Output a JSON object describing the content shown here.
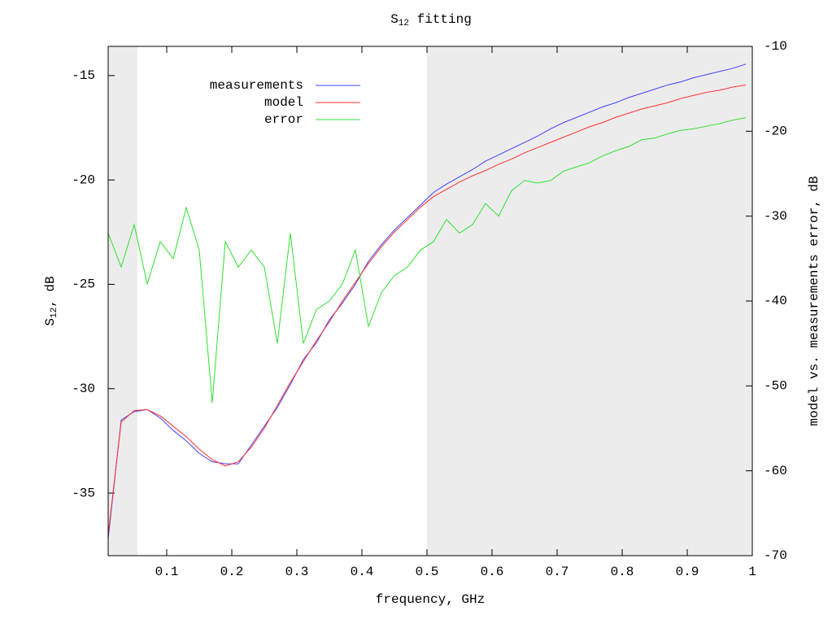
{
  "chart_data": {
    "type": "line",
    "title_parts": [
      "S",
      "12",
      " fitting"
    ],
    "x_label": "frequency, GHz",
    "y_label_parts": [
      "S",
      "12",
      ", dB"
    ],
    "y2_label": "model vs. measurements error, dB",
    "xlim": [
      0.01,
      1
    ],
    "xticks": [
      0.1,
      0.2,
      0.3,
      0.4,
      0.5,
      0.6,
      0.7,
      0.8,
      0.9,
      1
    ],
    "ylim": [
      -38,
      -13.6
    ],
    "yticks": [
      -15,
      -20,
      -25,
      -30,
      -35
    ],
    "y2lim": [
      -70,
      -10
    ],
    "y2ticks": [
      -10,
      -20,
      -30,
      -40,
      -50,
      -60,
      -70
    ],
    "y2_color": "#00cc00",
    "shaded_regions": [
      [
        0.01,
        0.055
      ],
      [
        0.5,
        1
      ]
    ],
    "shade_color": "#ececec",
    "legend": "top-left",
    "x": [
      0.01,
      0.03,
      0.05,
      0.07,
      0.09,
      0.11,
      0.13,
      0.15,
      0.17,
      0.19,
      0.21,
      0.23,
      0.25,
      0.27,
      0.29,
      0.31,
      0.33,
      0.35,
      0.37,
      0.39,
      0.41,
      0.43,
      0.45,
      0.47,
      0.49,
      0.51,
      0.53,
      0.55,
      0.57,
      0.59,
      0.61,
      0.63,
      0.65,
      0.67,
      0.69,
      0.71,
      0.73,
      0.75,
      0.77,
      0.79,
      0.81,
      0.83,
      0.85,
      0.87,
      0.89,
      0.91,
      0.93,
      0.95,
      0.97,
      0.99
    ],
    "series": [
      {
        "name": "measurements",
        "color": "#4040ff",
        "values": [
          -37.2,
          -31.5,
          -31.1,
          -31.0,
          -31.4,
          -32.0,
          -32.5,
          -33.1,
          -33.5,
          -33.6,
          -33.6,
          -32.7,
          -31.8,
          -30.9,
          -29.8,
          -28.6,
          -27.8,
          -26.7,
          -25.9,
          -25.0,
          -23.9,
          -23.1,
          -22.4,
          -21.8,
          -21.2,
          -20.6,
          -20.2,
          -19.85,
          -19.5,
          -19.1,
          -18.8,
          -18.5,
          -18.2,
          -17.9,
          -17.55,
          -17.25,
          -17.0,
          -16.75,
          -16.5,
          -16.3,
          -16.05,
          -15.85,
          -15.65,
          -15.45,
          -15.3,
          -15.1,
          -14.95,
          -14.8,
          -14.65,
          -14.45
        ]
      },
      {
        "name": "model",
        "color": "#ff3030",
        "values": [
          -37.0,
          -31.6,
          -31.05,
          -31.0,
          -31.3,
          -31.8,
          -32.3,
          -32.9,
          -33.4,
          -33.7,
          -33.5,
          -32.8,
          -31.9,
          -30.8,
          -29.7,
          -28.7,
          -27.7,
          -26.8,
          -25.8,
          -24.9,
          -24.0,
          -23.2,
          -22.5,
          -21.9,
          -21.3,
          -20.8,
          -20.45,
          -20.1,
          -19.8,
          -19.55,
          -19.25,
          -19.0,
          -18.7,
          -18.45,
          -18.2,
          -17.95,
          -17.7,
          -17.45,
          -17.25,
          -17.0,
          -16.8,
          -16.6,
          -16.45,
          -16.3,
          -16.1,
          -15.95,
          -15.8,
          -15.7,
          -15.55,
          -15.45
        ]
      },
      {
        "name": "error",
        "color": "#30e030",
        "axis": "y2",
        "values": [
          -32,
          -36,
          -31,
          -38,
          -33,
          -35,
          -29,
          -34,
          -52,
          -33,
          -36,
          -34,
          -36,
          -45,
          -32,
          -45,
          -41,
          -40,
          -38,
          -34,
          -43,
          -39,
          -37,
          -36,
          -34,
          -33,
          -30.4,
          -32,
          -31,
          -28.5,
          -30,
          -27,
          -25.8,
          -26.1,
          -25.8,
          -24.7,
          -24.2,
          -23.7,
          -22.9,
          -22.3,
          -21.8,
          -21.0,
          -20.8,
          -20.3,
          -19.9,
          -19.7,
          -19.4,
          -19.1,
          -18.7,
          -18.4
        ]
      }
    ]
  }
}
